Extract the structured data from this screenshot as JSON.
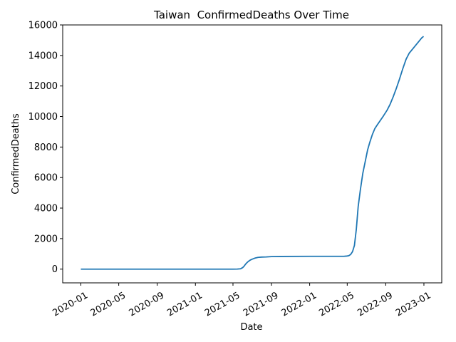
{
  "chart_data": {
    "type": "line",
    "title": "Taiwan  ConfirmedDeaths Over Time",
    "xlabel": "Date",
    "ylabel": "ConfirmedDeaths",
    "x_tick_labels": [
      "2020-01",
      "2020-05",
      "2020-09",
      "2021-01",
      "2021-05",
      "2021-09",
      "2022-01",
      "2022-05",
      "2022-09",
      "2023-01"
    ],
    "y_tick_labels": [
      "0",
      "2000",
      "4000",
      "6000",
      "8000",
      "10000",
      "12000",
      "14000",
      "16000"
    ],
    "xlim": [
      "2019-11-04",
      "2023-02-27"
    ],
    "ylim": [
      -900,
      16000
    ],
    "grid": false,
    "colors": {
      "series": "#1f77b4"
    },
    "series": [
      {
        "x": [
          "2020-01-01",
          "2020-06-01",
          "2021-01-01",
          "2021-05-01",
          "2021-05-15",
          "2021-05-25",
          "2021-06-01",
          "2021-06-05",
          "2021-06-10",
          "2021-06-15",
          "2021-06-20",
          "2021-06-25",
          "2021-07-01",
          "2021-07-10",
          "2021-07-20",
          "2021-08-01",
          "2021-08-15",
          "2021-09-01",
          "2021-10-01",
          "2022-01-01",
          "2022-04-01",
          "2022-04-20",
          "2022-05-01",
          "2022-05-06",
          "2022-05-12",
          "2022-05-18",
          "2022-05-24",
          "2022-05-30",
          "2022-06-05",
          "2022-06-12",
          "2022-06-20",
          "2022-06-28",
          "2022-07-05",
          "2022-07-12",
          "2022-07-20",
          "2022-07-28",
          "2022-08-05",
          "2022-08-15",
          "2022-08-25",
          "2022-09-05",
          "2022-09-15",
          "2022-09-25",
          "2022-10-05",
          "2022-10-15",
          "2022-10-25",
          "2022-11-05",
          "2022-11-15",
          "2022-11-25",
          "2022-12-05",
          "2022-12-15",
          "2022-12-25",
          "2022-12-31"
        ],
        "y": [
          0,
          0,
          0,
          0,
          3,
          20,
          100,
          180,
          320,
          430,
          520,
          590,
          650,
          720,
          770,
          790,
          800,
          820,
          830,
          840,
          840,
          840,
          860,
          880,
          960,
          1150,
          1550,
          2600,
          4100,
          5200,
          6300,
          7100,
          7800,
          8300,
          8800,
          9200,
          9450,
          9750,
          10050,
          10400,
          10800,
          11300,
          11850,
          12450,
          13100,
          13750,
          14150,
          14400,
          14650,
          14900,
          15150,
          15250
        ]
      }
    ]
  }
}
